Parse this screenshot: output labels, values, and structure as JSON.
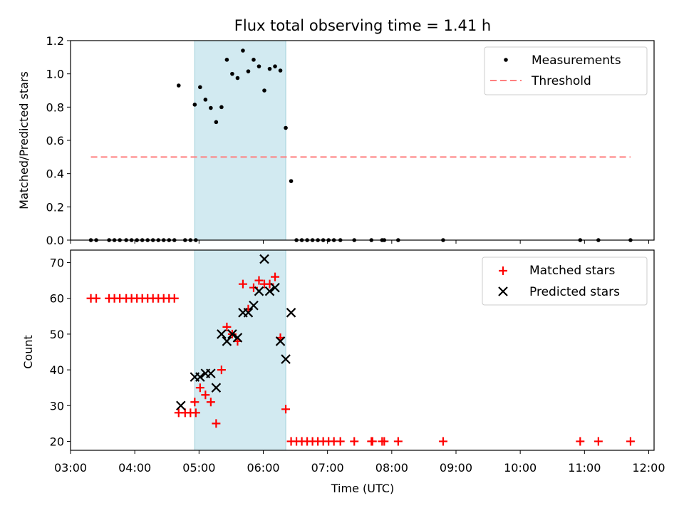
{
  "colors": {
    "measurement": "#000000",
    "threshold": "#ff7f7f",
    "matched": "#ff0000",
    "predicted": "#000000",
    "highlight": "#add8e6"
  },
  "chart_data": [
    {
      "type": "scatter",
      "title": "Flux total observing time = 1.41 h",
      "ylabel": "Matched/Predicted stars",
      "xlabel": "",
      "xlim": [
        "03:00",
        "12:05"
      ],
      "ylim": [
        0,
        1.2
      ],
      "yticks": [
        "0.0",
        "0.2",
        "0.4",
        "0.6",
        "0.8",
        "1.0",
        "1.2"
      ],
      "xtick_labels_visible": false,
      "highlight_span": [
        "04:56",
        "06:21"
      ],
      "legend_position": "top-right",
      "series": [
        {
          "name": "Measurements",
          "marker": "dot",
          "points": [
            [
              "03:19",
              0
            ],
            [
              "03:24",
              0
            ],
            [
              "03:36",
              0
            ],
            [
              "03:41",
              0
            ],
            [
              "03:46",
              0
            ],
            [
              "03:52",
              0
            ],
            [
              "03:57",
              0
            ],
            [
              "04:02",
              0
            ],
            [
              "04:07",
              0
            ],
            [
              "04:12",
              0
            ],
            [
              "04:17",
              0
            ],
            [
              "04:22",
              0
            ],
            [
              "04:27",
              0
            ],
            [
              "04:32",
              0
            ],
            [
              "04:37",
              0
            ],
            [
              "04:41",
              0.93
            ],
            [
              "04:47",
              0
            ],
            [
              "04:52",
              0
            ],
            [
              "04:57",
              0
            ],
            [
              "04:56",
              0.815
            ],
            [
              "05:01",
              0.92
            ],
            [
              "05:06",
              0.845
            ],
            [
              "05:11",
              0.795
            ],
            [
              "05:16",
              0.71
            ],
            [
              "05:21",
              0.8
            ],
            [
              "05:26",
              1.085
            ],
            [
              "05:31",
              1.0
            ],
            [
              "05:36",
              0.975
            ],
            [
              "05:41",
              1.14
            ],
            [
              "05:46",
              1.015
            ],
            [
              "05:51",
              1.085
            ],
            [
              "05:56",
              1.045
            ],
            [
              "06:01",
              0.9
            ],
            [
              "06:06",
              1.03
            ],
            [
              "06:11",
              1.045
            ],
            [
              "06:16",
              1.02
            ],
            [
              "06:21",
              0.675
            ],
            [
              "06:26",
              0.355
            ],
            [
              "06:31",
              0
            ],
            [
              "06:36",
              0
            ],
            [
              "06:41",
              0
            ],
            [
              "06:46",
              0
            ],
            [
              "06:51",
              0
            ],
            [
              "06:56",
              0
            ],
            [
              "07:01",
              0
            ],
            [
              "07:06",
              0
            ],
            [
              "07:12",
              0
            ],
            [
              "07:25",
              0
            ],
            [
              "07:41",
              0
            ],
            [
              "07:51",
              0
            ],
            [
              "07:53",
              0
            ],
            [
              "08:06",
              0
            ],
            [
              "08:48",
              0
            ],
            [
              "10:56",
              0
            ],
            [
              "11:13",
              0
            ],
            [
              "11:43",
              0
            ]
          ]
        },
        {
          "name": "Threshold",
          "style": "dashed",
          "points": [
            [
              "03:19",
              0.5
            ],
            [
              "11:43",
              0.5
            ]
          ]
        }
      ]
    },
    {
      "type": "scatter",
      "title": "",
      "xlabel": "Time (UTC)",
      "ylabel": "Count",
      "xlim": [
        "03:00",
        "12:05"
      ],
      "ylim": [
        17.5,
        73.5
      ],
      "yticks": [
        "20",
        "30",
        "40",
        "50",
        "60",
        "70"
      ],
      "xticks": [
        "03:00",
        "04:00",
        "05:00",
        "06:00",
        "07:00",
        "08:00",
        "09:00",
        "10:00",
        "11:00",
        "12:00"
      ],
      "highlight_span": [
        "04:56",
        "06:21"
      ],
      "legend_position": "top-right",
      "series": [
        {
          "name": "Matched stars",
          "marker": "plus",
          "points": [
            [
              "03:19",
              60
            ],
            [
              "03:24",
              60
            ],
            [
              "03:36",
              60
            ],
            [
              "03:41",
              60
            ],
            [
              "03:46",
              60
            ],
            [
              "03:52",
              60
            ],
            [
              "03:57",
              60
            ],
            [
              "04:02",
              60
            ],
            [
              "04:07",
              60
            ],
            [
              "04:12",
              60
            ],
            [
              "04:17",
              60
            ],
            [
              "04:22",
              60
            ],
            [
              "04:27",
              60
            ],
            [
              "04:32",
              60
            ],
            [
              "04:37",
              60
            ],
            [
              "04:41",
              28
            ],
            [
              "04:47",
              28
            ],
            [
              "04:52",
              28
            ],
            [
              "04:57",
              28
            ],
            [
              "04:56",
              31
            ],
            [
              "05:01",
              35
            ],
            [
              "05:06",
              33
            ],
            [
              "05:11",
              31
            ],
            [
              "05:16",
              25
            ],
            [
              "05:21",
              40
            ],
            [
              "05:26",
              52
            ],
            [
              "05:31",
              50
            ],
            [
              "05:36",
              48
            ],
            [
              "05:41",
              64
            ],
            [
              "05:46",
              57
            ],
            [
              "05:51",
              63
            ],
            [
              "05:56",
              65
            ],
            [
              "06:01",
              64
            ],
            [
              "06:06",
              64
            ],
            [
              "06:11",
              66
            ],
            [
              "06:16",
              49
            ],
            [
              "06:21",
              29
            ],
            [
              "06:26",
              20
            ],
            [
              "06:31",
              20
            ],
            [
              "06:36",
              20
            ],
            [
              "06:41",
              20
            ],
            [
              "06:46",
              20
            ],
            [
              "06:51",
              20
            ],
            [
              "06:56",
              20
            ],
            [
              "07:01",
              20
            ],
            [
              "07:06",
              20
            ],
            [
              "07:12",
              20
            ],
            [
              "07:25",
              20
            ],
            [
              "07:41",
              20
            ],
            [
              "07:42",
              20
            ],
            [
              "07:51",
              20
            ],
            [
              "07:53",
              20
            ],
            [
              "08:06",
              20
            ],
            [
              "08:48",
              20
            ],
            [
              "10:56",
              20
            ],
            [
              "11:13",
              20
            ],
            [
              "11:43",
              20
            ]
          ]
        },
        {
          "name": "Predicted stars",
          "marker": "x",
          "points": [
            [
              "04:43",
              30
            ],
            [
              "04:56",
              38
            ],
            [
              "05:01",
              38
            ],
            [
              "05:06",
              39
            ],
            [
              "05:11",
              39
            ],
            [
              "05:16",
              35
            ],
            [
              "05:21",
              50
            ],
            [
              "05:26",
              48
            ],
            [
              "05:31",
              50
            ],
            [
              "05:36",
              49
            ],
            [
              "05:41",
              56
            ],
            [
              "05:46",
              56
            ],
            [
              "05:51",
              58
            ],
            [
              "05:56",
              62
            ],
            [
              "06:01",
              71
            ],
            [
              "06:06",
              62
            ],
            [
              "06:11",
              63
            ],
            [
              "06:16",
              48
            ],
            [
              "06:21",
              43
            ],
            [
              "06:26",
              56
            ]
          ]
        }
      ]
    }
  ]
}
